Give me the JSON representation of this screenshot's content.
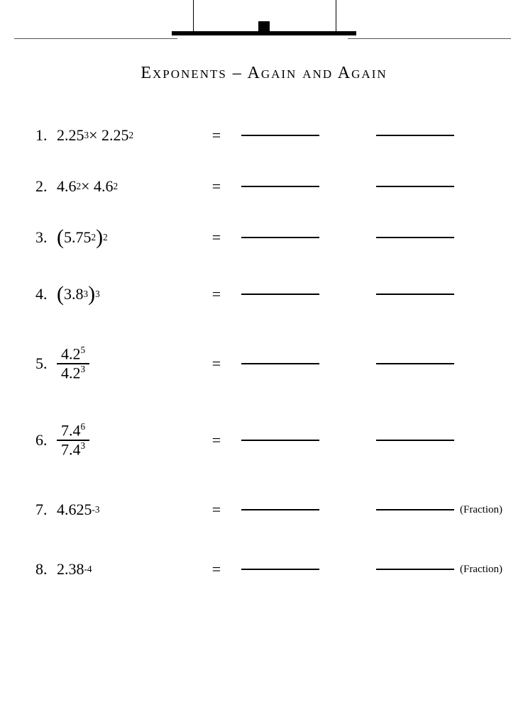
{
  "title": "Exponents – Again and Again",
  "problems": [
    {
      "n": "1.",
      "expr_html": "2.25<sup>3</sup> × 2.25<sup>2</sup>",
      "note": "",
      "h": 72
    },
    {
      "n": "2.",
      "expr_html": "4.6<sup>2</sup> × 4.6<sup>2</sup>",
      "note": "",
      "h": 72
    },
    {
      "n": "3.",
      "expr_html": "<span class='paren'>(</span>5.75<sup>2</sup><span class='paren'>)</span><sup>2</sup>",
      "note": "",
      "h": 72
    },
    {
      "n": "4.",
      "expr_html": "<span class='paren'>(</span>3.8<sup>3</sup><span class='paren'>)</span><sup>3</sup>",
      "note": "",
      "h": 88
    },
    {
      "n": "5.",
      "expr_html": "<span class='frac'><span class='top'>4.2<sup>5</sup></span><span class='bot'>4.2<sup>3</sup></span></span>",
      "note": "",
      "h": 108
    },
    {
      "n": "6.",
      "expr_html": "<span class='frac'><span class='top'>7.4<sup>6</sup></span><span class='bot'>7.4<sup>3</sup></span></span>",
      "note": "",
      "h": 108
    },
    {
      "n": "7.",
      "expr_html": "4.625<sup>-3</sup>",
      "note": "(Fraction)",
      "h": 88
    },
    {
      "n": "8.",
      "expr_html": "2.38<sup>-4</sup>",
      "note": "(Fraction)",
      "h": 80
    }
  ],
  "colors": {
    "ink": "#000000",
    "paper": "#ffffff"
  }
}
